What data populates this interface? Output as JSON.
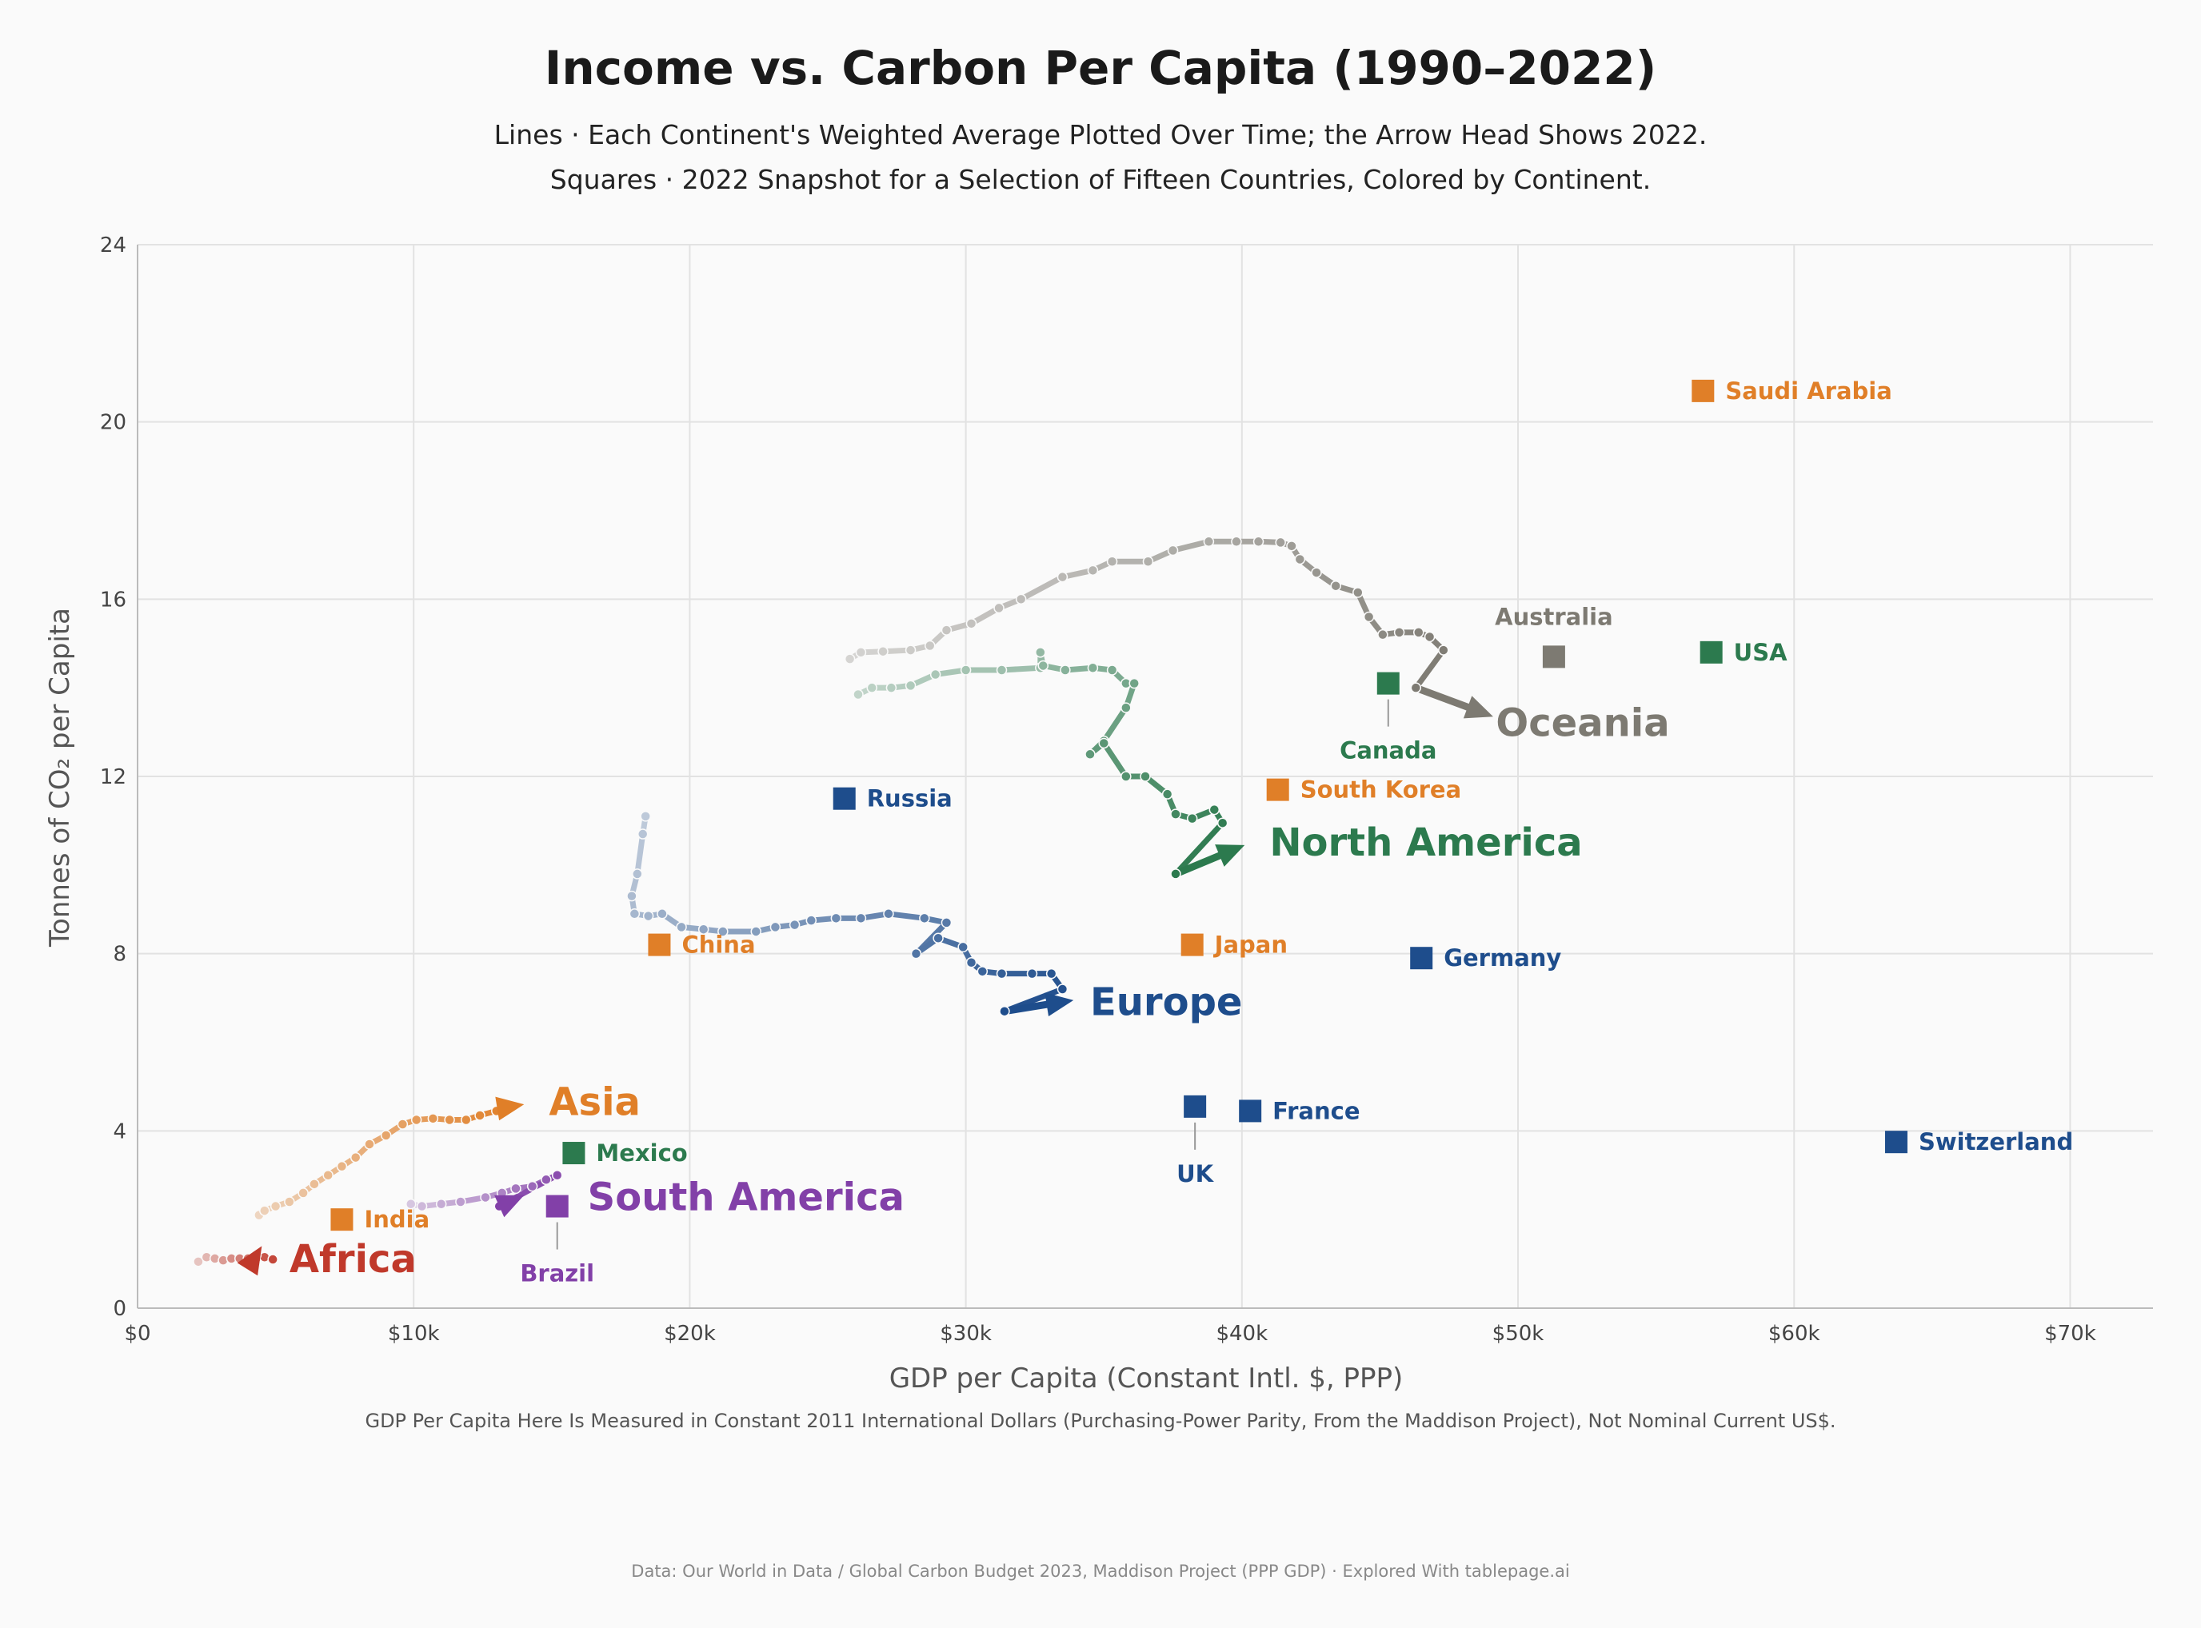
{
  "chart_data": {
    "type": "scatter",
    "title": "Income vs. Carbon Per Capita (1990–2022)",
    "subtitle_lines": "Lines  ·  Each Continent's Weighted Average Plotted Over Time; the Arrow Head Shows 2022.",
    "subtitle_squares": "Squares  ·  2022 Snapshot for a Selection of Fifteen Countries, Colored by Continent.",
    "xlabel": "GDP per Capita (Constant Intl. $, PPP)",
    "ylabel": "Tonnes of CO₂ per Capita",
    "xlim": [
      0,
      73000
    ],
    "ylim": [
      0,
      24
    ],
    "x_ticks": [
      0,
      10000,
      20000,
      30000,
      40000,
      50000,
      60000,
      70000
    ],
    "x_tick_labels": [
      "$0",
      "$10k",
      "$20k",
      "$30k",
      "$40k",
      "$50k",
      "$60k",
      "$70k"
    ],
    "y_ticks": [
      0,
      4,
      8,
      12,
      16,
      20,
      24
    ],
    "y_tick_labels": [
      "0",
      "4",
      "8",
      "12",
      "16",
      "20",
      "24"
    ],
    "grid": true,
    "note": "GDP Per Capita Here Is Measured in Constant 2011 International Dollars (Purchasing-Power Parity, From the Maddison Project), Not Nominal Current US$.",
    "source": "Data: Our World in Data / Global Carbon Budget 2023, Maddison Project (PPP GDP)  ·  Explored With tablepage.ai",
    "series": [
      {
        "name": "Oceania",
        "color": "#7d7a72",
        "label_x": 49200,
        "label_y": 13.2,
        "points": [
          [
            25800,
            14.65
          ],
          [
            26200,
            14.8
          ],
          [
            27000,
            14.82
          ],
          [
            28000,
            14.85
          ],
          [
            28700,
            14.95
          ],
          [
            29300,
            15.3
          ],
          [
            30200,
            15.45
          ],
          [
            31200,
            15.8
          ],
          [
            32000,
            16.0
          ],
          [
            33500,
            16.5
          ],
          [
            34600,
            16.65
          ],
          [
            35300,
            16.85
          ],
          [
            36600,
            16.85
          ],
          [
            37500,
            17.1
          ],
          [
            38800,
            17.3
          ],
          [
            39800,
            17.3
          ],
          [
            40600,
            17.3
          ],
          [
            41400,
            17.28
          ],
          [
            41800,
            17.2
          ],
          [
            42100,
            16.9
          ],
          [
            42700,
            16.6
          ],
          [
            43400,
            16.3
          ],
          [
            44200,
            16.15
          ],
          [
            44600,
            15.6
          ],
          [
            45100,
            15.2
          ],
          [
            45700,
            15.25
          ],
          [
            46400,
            15.25
          ],
          [
            46800,
            15.15
          ],
          [
            47300,
            14.85
          ],
          [
            46300,
            14.0
          ],
          [
            49100,
            13.35
          ]
        ]
      },
      {
        "name": "North America",
        "color": "#2c7a4e",
        "label_x": 41000,
        "label_y": 10.5,
        "points": [
          [
            26100,
            13.85
          ],
          [
            26600,
            14.0
          ],
          [
            27300,
            14.0
          ],
          [
            28000,
            14.05
          ],
          [
            28900,
            14.3
          ],
          [
            30000,
            14.4
          ],
          [
            31300,
            14.4
          ],
          [
            32700,
            14.45
          ],
          [
            32700,
            14.8
          ],
          [
            32800,
            14.5
          ],
          [
            33600,
            14.4
          ],
          [
            34600,
            14.45
          ],
          [
            35300,
            14.4
          ],
          [
            35800,
            14.1
          ],
          [
            36100,
            14.1
          ],
          [
            35800,
            13.55
          ],
          [
            35000,
            12.8
          ],
          [
            34500,
            12.5
          ],
          [
            35000,
            12.75
          ],
          [
            35800,
            12.0
          ],
          [
            36500,
            12.0
          ],
          [
            37300,
            11.6
          ],
          [
            37600,
            11.15
          ],
          [
            38200,
            11.05
          ],
          [
            39000,
            11.25
          ],
          [
            39300,
            10.95
          ],
          [
            37600,
            9.8
          ],
          [
            40100,
            10.45
          ]
        ]
      },
      {
        "name": "Europe",
        "color": "#1e4d8c",
        "label_x": 34500,
        "label_y": 6.9,
        "points": [
          [
            18400,
            11.1
          ],
          [
            18300,
            10.7
          ],
          [
            18100,
            9.8
          ],
          [
            17900,
            9.3
          ],
          [
            18000,
            8.9
          ],
          [
            18500,
            8.85
          ],
          [
            19000,
            8.9
          ],
          [
            19700,
            8.6
          ],
          [
            20500,
            8.55
          ],
          [
            21200,
            8.5
          ],
          [
            22400,
            8.5
          ],
          [
            23100,
            8.6
          ],
          [
            23800,
            8.65
          ],
          [
            24400,
            8.75
          ],
          [
            25300,
            8.8
          ],
          [
            26200,
            8.8
          ],
          [
            27200,
            8.9
          ],
          [
            28500,
            8.8
          ],
          [
            29300,
            8.7
          ],
          [
            28200,
            8.0
          ],
          [
            29000,
            8.35
          ],
          [
            29900,
            8.15
          ],
          [
            30200,
            7.8
          ],
          [
            30600,
            7.6
          ],
          [
            31300,
            7.55
          ],
          [
            32400,
            7.55
          ],
          [
            33100,
            7.55
          ],
          [
            33500,
            7.2
          ],
          [
            31400,
            6.7
          ],
          [
            33900,
            6.95
          ]
        ]
      },
      {
        "name": "Asia",
        "color": "#e07f28",
        "label_x": 14900,
        "label_y": 4.65,
        "points": [
          [
            4400,
            2.1
          ],
          [
            4600,
            2.2
          ],
          [
            5000,
            2.3
          ],
          [
            5500,
            2.4
          ],
          [
            6000,
            2.6
          ],
          [
            6400,
            2.8
          ],
          [
            6900,
            3.0
          ],
          [
            7400,
            3.2
          ],
          [
            7900,
            3.4
          ],
          [
            8400,
            3.7
          ],
          [
            9000,
            3.9
          ],
          [
            9600,
            4.15
          ],
          [
            10100,
            4.25
          ],
          [
            10700,
            4.28
          ],
          [
            11300,
            4.25
          ],
          [
            11900,
            4.25
          ],
          [
            12400,
            4.35
          ],
          [
            13000,
            4.45
          ],
          [
            13500,
            4.55
          ],
          [
            14000,
            4.6
          ]
        ]
      },
      {
        "name": "South America",
        "color": "#8240a8",
        "label_x": 16300,
        "label_y": 2.5,
        "points": [
          [
            9900,
            2.35
          ],
          [
            10300,
            2.3
          ],
          [
            11000,
            2.35
          ],
          [
            11700,
            2.4
          ],
          [
            12600,
            2.5
          ],
          [
            13200,
            2.6
          ],
          [
            13700,
            2.7
          ],
          [
            14300,
            2.75
          ],
          [
            14800,
            2.9
          ],
          [
            15200,
            3.0
          ],
          [
            13100,
            2.3
          ],
          [
            14000,
            2.55
          ]
        ]
      },
      {
        "name": "Africa",
        "color": "#c0392b",
        "label_x": 5500,
        "label_y": 1.1,
        "points": [
          [
            2200,
            1.05
          ],
          [
            2500,
            1.15
          ],
          [
            2800,
            1.12
          ],
          [
            3100,
            1.08
          ],
          [
            3400,
            1.12
          ],
          [
            3700,
            1.12
          ],
          [
            4000,
            1.12
          ],
          [
            4300,
            1.12
          ],
          [
            4600,
            1.15
          ],
          [
            4900,
            1.1
          ],
          [
            4300,
            1.2
          ],
          [
            4500,
            1.4
          ]
        ]
      }
    ],
    "countries": [
      {
        "name": "Saudi Arabia",
        "continent": "Asia",
        "color": "#e07f28",
        "x": 56700,
        "y": 20.7,
        "label_pos": "right"
      },
      {
        "name": "USA",
        "continent": "North America",
        "color": "#2c7a4e",
        "x": 57000,
        "y": 14.8,
        "label_pos": "right"
      },
      {
        "name": "Australia",
        "continent": "Oceania",
        "color": "#7d7a72",
        "x": 51300,
        "y": 14.7,
        "label_pos": "above"
      },
      {
        "name": "Canada",
        "continent": "North America",
        "color": "#2c7a4e",
        "x": 45300,
        "y": 14.1,
        "label_pos": "below"
      },
      {
        "name": "South Korea",
        "continent": "Asia",
        "color": "#e07f28",
        "x": 41300,
        "y": 11.7,
        "label_pos": "right"
      },
      {
        "name": "Russia",
        "continent": "Europe",
        "color": "#1e4d8c",
        "x": 25600,
        "y": 11.5,
        "label_pos": "right"
      },
      {
        "name": "Japan",
        "continent": "Asia",
        "color": "#e07f28",
        "x": 38200,
        "y": 8.2,
        "label_pos": "right"
      },
      {
        "name": "Germany",
        "continent": "Europe",
        "color": "#1e4d8c",
        "x": 46500,
        "y": 7.9,
        "label_pos": "right"
      },
      {
        "name": "China",
        "continent": "Asia",
        "color": "#e07f28",
        "x": 18900,
        "y": 8.2,
        "label_pos": "right"
      },
      {
        "name": "France",
        "continent": "Europe",
        "color": "#1e4d8c",
        "x": 40300,
        "y": 4.45,
        "label_pos": "right"
      },
      {
        "name": "UK",
        "continent": "Europe",
        "color": "#1e4d8c",
        "x": 38300,
        "y": 4.55,
        "label_pos": "below"
      },
      {
        "name": "Switzerland",
        "continent": "Europe",
        "color": "#1e4d8c",
        "x": 63700,
        "y": 3.75,
        "label_pos": "right"
      },
      {
        "name": "Mexico",
        "continent": "North America",
        "color": "#2c7a4e",
        "x": 15800,
        "y": 3.5,
        "label_pos": "right"
      },
      {
        "name": "Brazil",
        "continent": "South America",
        "color": "#8240a8",
        "x": 15200,
        "y": 2.3,
        "label_pos": "below"
      },
      {
        "name": "India",
        "continent": "Asia",
        "color": "#e07f28",
        "x": 7400,
        "y": 2.0,
        "label_pos": "right"
      }
    ]
  }
}
